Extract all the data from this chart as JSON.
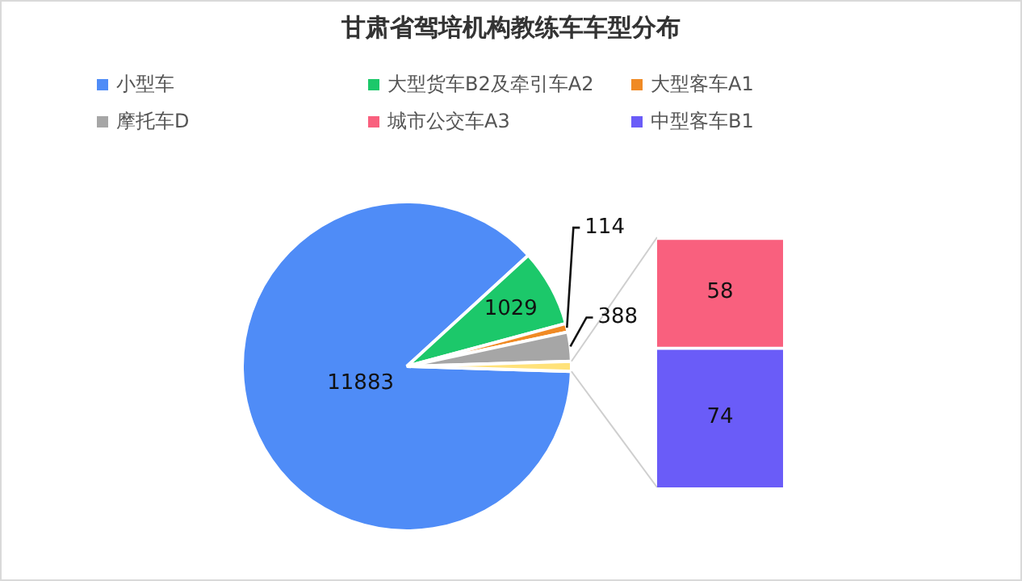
{
  "chart_data": [
    {
      "type": "pie",
      "title": "甘肃省驾培机构教练车车型分布",
      "legend": "top",
      "data_labels": true,
      "categories": [
        "小型车",
        "大型货车B2及牵引车A2",
        "大型客车A1",
        "摩托车D",
        null
      ],
      "values": [
        11883,
        1029,
        114,
        388,
        132
      ],
      "colors": [
        "#4f8cf7",
        "#1cc86a",
        "#f08a24",
        "#a6a6a6",
        "#ffe27a"
      ],
      "value_labels": [
        "11883",
        "1029",
        "114",
        "388",
        null
      ]
    },
    {
      "type": "bar",
      "stacked": true,
      "legend": "top",
      "data_labels": true,
      "tick_labels": false,
      "categories": [
        null
      ],
      "series": [
        {
          "name": "中型客车B1",
          "color": "#6a5cf8",
          "values": [
            74
          ]
        },
        {
          "name": "城市公交车A3",
          "color": "#f9607e",
          "values": [
            58
          ]
        }
      ]
    }
  ]
}
